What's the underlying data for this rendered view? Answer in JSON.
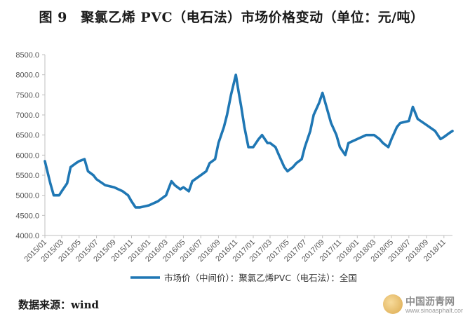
{
  "title": "图 9　聚氯乙烯 PVC（电石法）市场价格变动（单位：元/吨）",
  "source": "数据来源：wind",
  "watermark": {
    "brand": "中国沥青网",
    "url": "www.sinoasphalt.com"
  },
  "colors": {
    "series": "#1f77b4",
    "axis": "#bfbfbf",
    "text": "#555555"
  },
  "chart_data": {
    "type": "line",
    "title": "图 9　聚氯乙烯 PVC（电石法）市场价格变动（单位：元/吨）",
    "xlabel": "",
    "ylabel": "",
    "ylim": [
      4000,
      8500
    ],
    "yticks": [
      "4000.0",
      "4500.0",
      "5000.0",
      "5500.0",
      "6000.0",
      "6500.0",
      "7000.0",
      "7500.0",
      "8000.0",
      "8500.0"
    ],
    "xlim": [
      "2015/01",
      "2018/12"
    ],
    "xticks": [
      "2015/01",
      "2015/03",
      "2015/05",
      "2015/07",
      "2015/09",
      "2015/11",
      "2016/01",
      "2016/03",
      "2016/05",
      "2016/07",
      "2016/09",
      "2016/11",
      "2017/01",
      "2017/03",
      "2017/05",
      "2017/07",
      "2017/09",
      "2017/11",
      "2018/01",
      "2018/03",
      "2018/05",
      "2018/07",
      "2018/09",
      "2018/11"
    ],
    "grid": false,
    "legend_position": "bottom",
    "series": [
      {
        "name": "市场价（中间价）：聚氯乙烯PVC（电石法）：全国",
        "x": [
          "2015/01",
          "2015/01/20",
          "2015/02",
          "2015/02/20",
          "2015/03",
          "2015/03/20",
          "2015/04",
          "2015/04/20",
          "2015/05",
          "2015/05/20",
          "2015/06",
          "2015/06/20",
          "2015/07",
          "2015/08",
          "2015/09",
          "2015/10",
          "2015/10/20",
          "2015/11",
          "2015/11/15",
          "2015/12",
          "2016/01",
          "2016/02",
          "2016/03",
          "2016/03/20",
          "2016/04",
          "2016/04/20",
          "2016/05",
          "2016/05/20",
          "2016/06",
          "2016/07",
          "2016/07/20",
          "2016/08",
          "2016/08/20",
          "2016/09",
          "2016/09/20",
          "2016/10",
          "2016/10/15",
          "2016/11",
          "2016/11/10",
          "2016/11/20",
          "2016/12",
          "2016/12/15",
          "2017/01",
          "2017/01/20",
          "2017/02",
          "2017/02/20",
          "2017/03",
          "2017/03/20",
          "2017/04",
          "2017/04/20",
          "2017/05",
          "2017/05/20",
          "2017/06",
          "2017/06/20",
          "2017/07",
          "2017/07/20",
          "2017/08",
          "2017/08/20",
          "2017/09",
          "2017/09/15",
          "2017/10",
          "2017/10/20",
          "2017/11",
          "2017/11/20",
          "2017/12",
          "2018/01",
          "2018/02",
          "2018/03",
          "2018/03/20",
          "2018/04",
          "2018/04/20",
          "2018/05",
          "2018/05/20",
          "2018/06",
          "2018/07",
          "2018/07/15",
          "2018/08",
          "2018/09",
          "2018/10",
          "2018/10/20",
          "2018/11",
          "2018/11/20",
          "2018/12"
        ],
        "values": [
          5850,
          5300,
          5000,
          5000,
          5100,
          5300,
          5700,
          5800,
          5850,
          5900,
          5600,
          5500,
          5400,
          5250,
          5200,
          5100,
          5000,
          4850,
          4700,
          4700,
          4750,
          4850,
          5000,
          5350,
          5250,
          5150,
          5200,
          5100,
          5350,
          5500,
          5600,
          5800,
          5900,
          6300,
          6700,
          7000,
          7500,
          8000,
          7600,
          7200,
          6700,
          6200,
          6200,
          6400,
          6500,
          6300,
          6300,
          6200,
          6000,
          5700,
          5600,
          5700,
          5800,
          5900,
          6200,
          6600,
          7000,
          7300,
          7550,
          7200,
          6800,
          6500,
          6200,
          6000,
          6300,
          6400,
          6500,
          6500,
          6400,
          6300,
          6200,
          6400,
          6700,
          6800,
          6850,
          7200,
          6900,
          6750,
          6600,
          6400,
          6450,
          6550,
          6600
        ]
      }
    ]
  }
}
